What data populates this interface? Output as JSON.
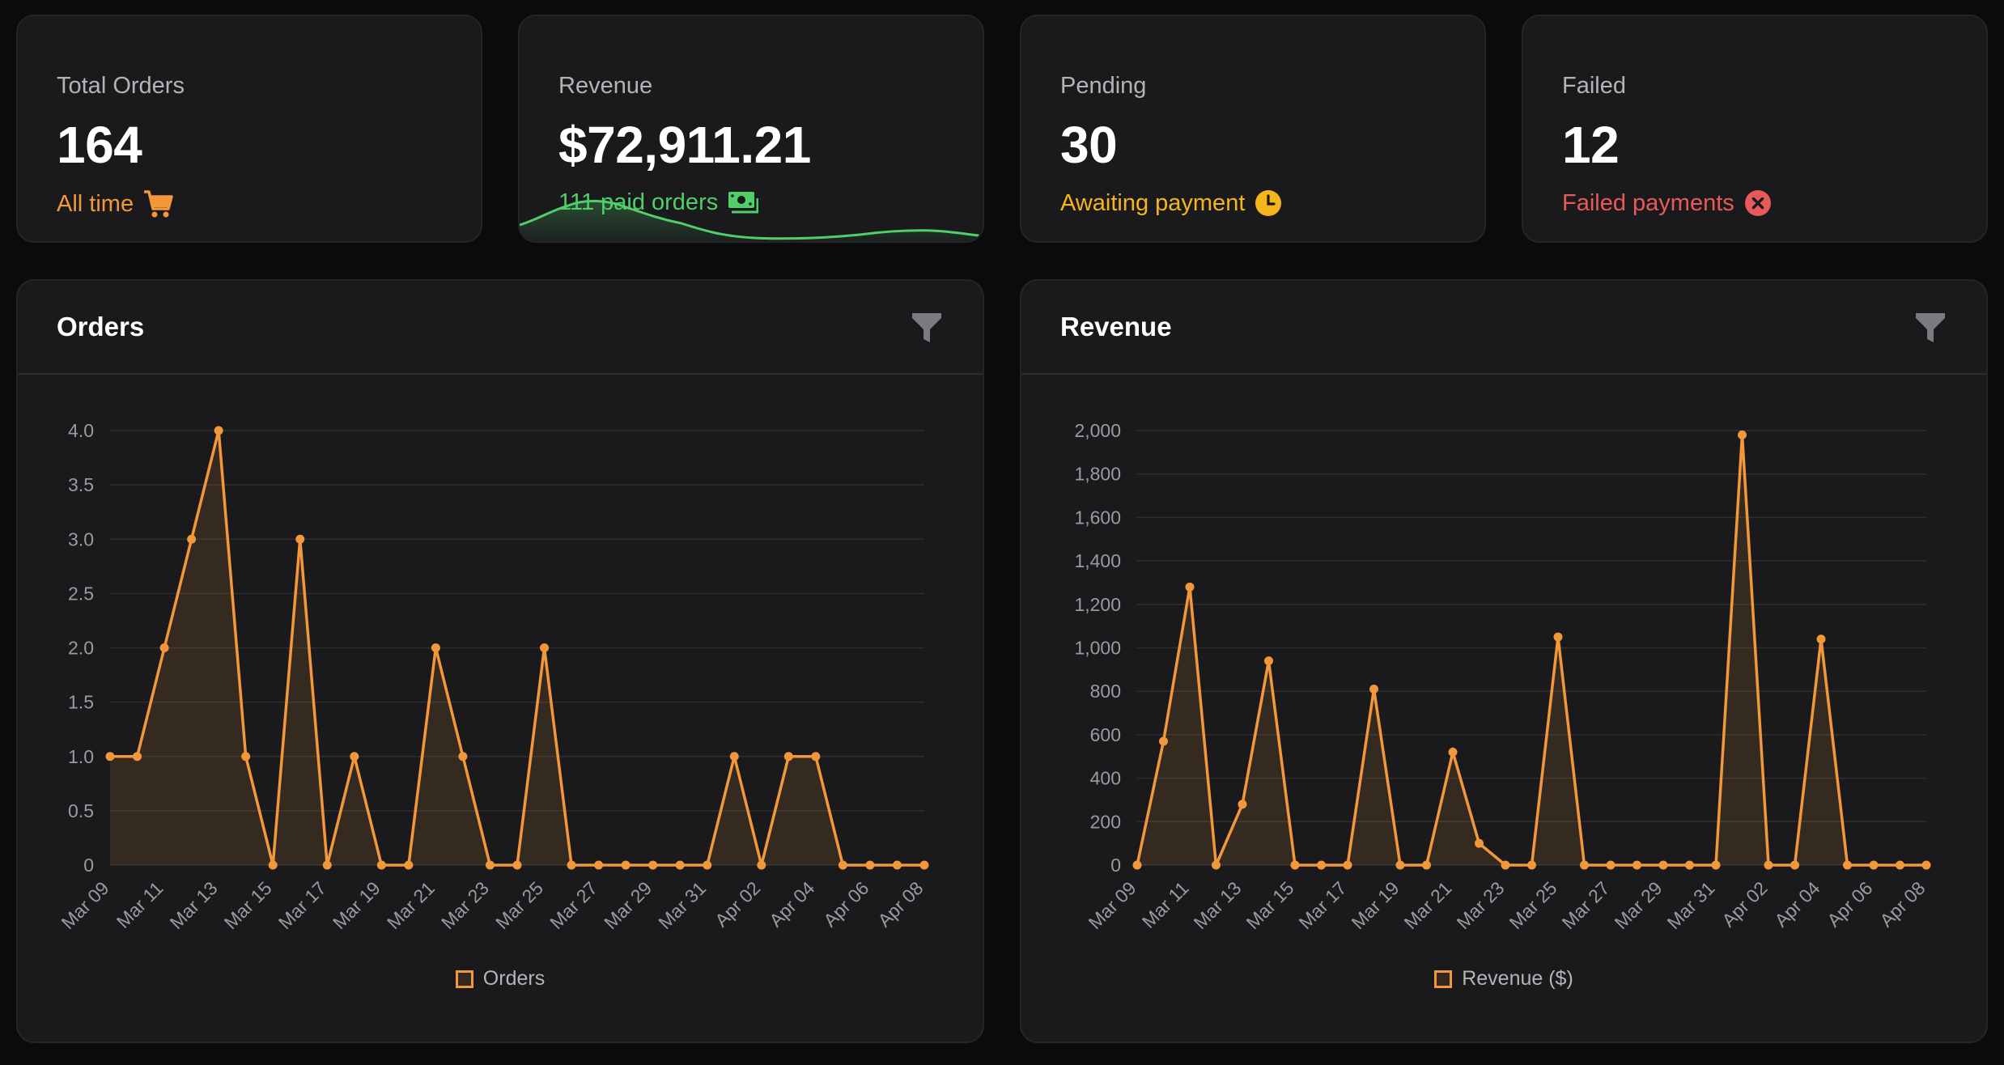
{
  "stats": [
    {
      "label": "Total Orders",
      "value": "164",
      "sub": "All time",
      "sub_color": "#f2973a",
      "icon": "cart-icon"
    },
    {
      "label": "Revenue",
      "value": "$72,911.21",
      "sub": "111 paid orders",
      "sub_color": "#4fce6a",
      "icon": "cash-icon"
    },
    {
      "label": "Pending",
      "value": "30",
      "sub": "Awaiting payment",
      "sub_color": "#f5b51c",
      "icon": "clock-icon"
    },
    {
      "label": "Failed",
      "value": "12",
      "sub": "Failed payments",
      "sub_color": "#e85a5a",
      "icon": "x-circle-icon"
    }
  ],
  "panels": {
    "orders": {
      "title": "Orders",
      "filter_icon": "filter-icon"
    },
    "revenue": {
      "title": "Revenue",
      "filter_icon": "filter-icon"
    }
  },
  "chart_data": [
    {
      "type": "line",
      "title": "Orders",
      "x": [
        "Mar 09",
        "Mar 10",
        "Mar 11",
        "Mar 12",
        "Mar 13",
        "Mar 14",
        "Mar 15",
        "Mar 16",
        "Mar 17",
        "Mar 18",
        "Mar 19",
        "Mar 20",
        "Mar 21",
        "Mar 22",
        "Mar 23",
        "Mar 24",
        "Mar 25",
        "Mar 26",
        "Mar 27",
        "Mar 28",
        "Mar 29",
        "Mar 30",
        "Mar 31",
        "Apr 01",
        "Apr 02",
        "Apr 03",
        "Apr 04",
        "Apr 05",
        "Apr 06",
        "Apr 07",
        "Apr 08"
      ],
      "tick_labels": [
        "Mar 09",
        "Mar 11",
        "Mar 13",
        "Mar 15",
        "Mar 17",
        "Mar 19",
        "Mar 21",
        "Mar 23",
        "Mar 25",
        "Mar 27",
        "Mar 29",
        "Mar 31",
        "Apr 02",
        "Apr 04",
        "Apr 06",
        "Apr 08"
      ],
      "series": [
        {
          "name": "Orders",
          "color": "#f2973a",
          "values": [
            1,
            1,
            2,
            3,
            4,
            1,
            0,
            3,
            0,
            1,
            0,
            0,
            2,
            1,
            0,
            0,
            2,
            0,
            0,
            0,
            0,
            0,
            0,
            1,
            0,
            1,
            1,
            0,
            0,
            0,
            0
          ]
        }
      ],
      "ylim": [
        0,
        4
      ],
      "yticks": [
        0,
        0.5,
        1.0,
        1.5,
        2.0,
        2.5,
        3.0,
        3.5,
        4.0
      ],
      "ytick_labels": [
        "0",
        "0.5",
        "1.0",
        "1.5",
        "2.0",
        "2.5",
        "3.0",
        "3.5",
        "4.0"
      ],
      "grid": true,
      "legend": "bottom-center"
    },
    {
      "type": "line",
      "title": "Revenue",
      "x": [
        "Mar 09",
        "Mar 10",
        "Mar 11",
        "Mar 12",
        "Mar 13",
        "Mar 14",
        "Mar 15",
        "Mar 16",
        "Mar 17",
        "Mar 18",
        "Mar 19",
        "Mar 20",
        "Mar 21",
        "Mar 22",
        "Mar 23",
        "Mar 24",
        "Mar 25",
        "Mar 26",
        "Mar 27",
        "Mar 28",
        "Mar 29",
        "Mar 30",
        "Mar 31",
        "Apr 01",
        "Apr 02",
        "Apr 03",
        "Apr 04",
        "Apr 05",
        "Apr 06",
        "Apr 07",
        "Apr 08"
      ],
      "tick_labels": [
        "Mar 09",
        "Mar 11",
        "Mar 13",
        "Mar 15",
        "Mar 17",
        "Mar 19",
        "Mar 21",
        "Mar 23",
        "Mar 25",
        "Mar 27",
        "Mar 29",
        "Mar 31",
        "Apr 02",
        "Apr 04",
        "Apr 06",
        "Apr 08"
      ],
      "series": [
        {
          "name": "Revenue ($)",
          "color": "#f2973a",
          "values": [
            0,
            570,
            1280,
            0,
            280,
            940,
            0,
            0,
            0,
            810,
            0,
            0,
            520,
            100,
            0,
            0,
            1050,
            0,
            0,
            0,
            0,
            0,
            0,
            1980,
            0,
            0,
            1040,
            0,
            0,
            0,
            0
          ]
        }
      ],
      "ylim": [
        0,
        2000
      ],
      "yticks": [
        0,
        200,
        400,
        600,
        800,
        1000,
        1200,
        1400,
        1600,
        1800,
        2000
      ],
      "ytick_labels": [
        "0",
        "200",
        "400",
        "600",
        "800",
        "1,000",
        "1,200",
        "1,400",
        "1,600",
        "1,800",
        "2,000"
      ],
      "grid": true,
      "legend": "bottom-center"
    }
  ]
}
